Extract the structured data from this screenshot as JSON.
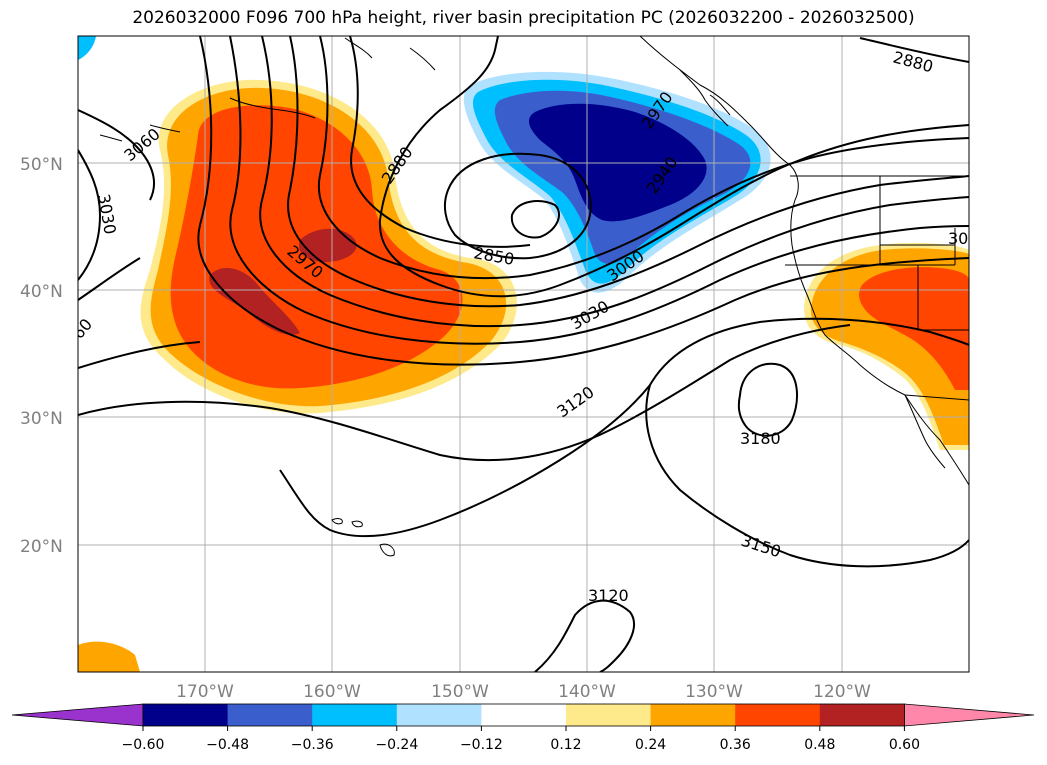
{
  "title": "2026032000 F096 700 hPa height, river basin precipitation PC (2026032200 - 2026032500)",
  "map": {
    "lat_labels": [
      "50°N",
      "40°N",
      "30°N",
      "20°N"
    ],
    "lon_labels": [
      "170°W",
      "160°W",
      "150°W",
      "140°W",
      "130°W",
      "120°W"
    ],
    "contour_labels": [
      "2880",
      "3060",
      "3030",
      "2880",
      "2970",
      "2850",
      "2970",
      "2940",
      "3000",
      "3030",
      "3120",
      "3180",
      "3150",
      "3120",
      "60",
      "30"
    ],
    "colors": {
      "neg_060": "#9a32cd",
      "neg_048": "#00008b",
      "neg_036": "#3a5fcd",
      "neg_024": "#00bfff",
      "neg_012": "#b0e2ff",
      "zero": "#ffffff",
      "pos_012": "#fee98b",
      "pos_024": "#ffa500",
      "pos_036": "#ff4500",
      "pos_048": "#b22222",
      "pos_060": "#ff88aa"
    }
  },
  "colorbar": {
    "labels": [
      "−0.60",
      "−0.48",
      "−0.36",
      "−0.24",
      "−0.12",
      "0.12",
      "0.24",
      "0.36",
      "0.48",
      "0.60"
    ],
    "colors": [
      "#9a32cd",
      "#00008b",
      "#3a5fcd",
      "#00bfff",
      "#b0e2ff",
      "#ffffff",
      "#fee98b",
      "#ffa500",
      "#ff4500",
      "#b22222",
      "#ff88aa"
    ]
  }
}
